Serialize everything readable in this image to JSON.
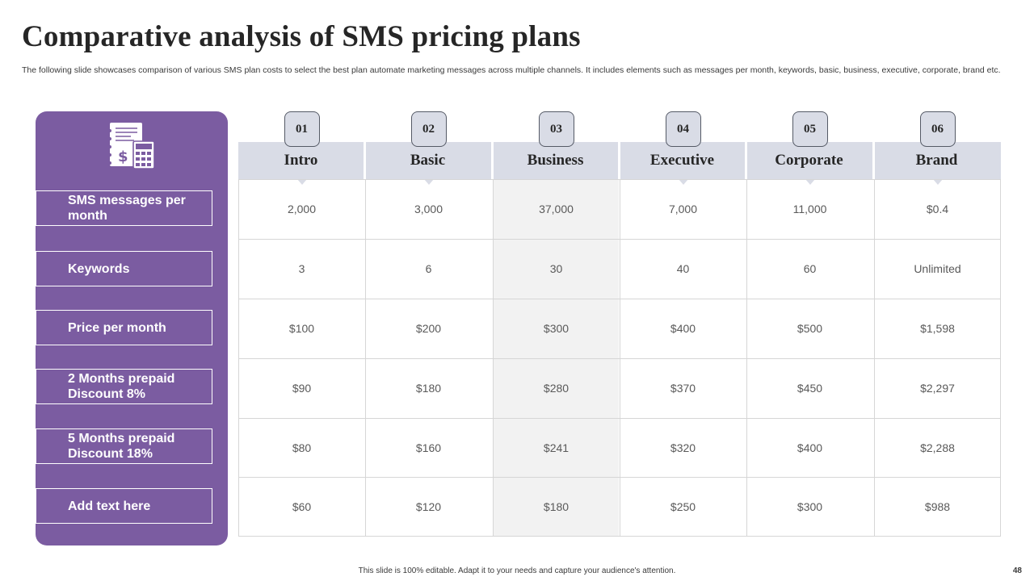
{
  "slide": {
    "title": "Comparative analysis of SMS pricing plans",
    "subtitle": "The following slide showcases comparison of various SMS plan costs to select the best plan automate marketing messages across multiple channels. It includes elements such as messages per month, keywords, basic, business, executive, corporate, brand etc.",
    "footer": "This slide is 100% editable. Adapt it to your needs and capture your audience's attention.",
    "page_number": "48",
    "accent_color": "#7b5ca1",
    "header_color": "#d9dce6",
    "highlighted_column": "Business",
    "icon": "document-calculator-icon"
  },
  "rows": [
    "SMS messages per month",
    "Keywords",
    "Price per month",
    "2 Months prepaid Discount 8%",
    "5 Months prepaid Discount 18%",
    "Add text here"
  ],
  "columns": [
    {
      "number": "01",
      "name": "Intro"
    },
    {
      "number": "02",
      "name": "Basic"
    },
    {
      "number": "03",
      "name": "Business"
    },
    {
      "number": "04",
      "name": "Executive"
    },
    {
      "number": "05",
      "name": "Corporate"
    },
    {
      "number": "06",
      "name": "Brand"
    }
  ],
  "cells": [
    [
      "2,000",
      "3,000",
      "37,000",
      "7,000",
      "11,000",
      "$0.4"
    ],
    [
      "3",
      "6",
      "30",
      "40",
      "60",
      "Unlimited"
    ],
    [
      "$100",
      "$200",
      "$300",
      "$400",
      "$500",
      "$1,598"
    ],
    [
      "$90",
      "$180",
      "$280",
      "$370",
      "$450",
      "$2,297"
    ],
    [
      "$80",
      "$160",
      "$241",
      "$320",
      "$400",
      "$2,288"
    ],
    [
      "$60",
      "$120",
      "$180",
      "$250",
      "$300",
      "$988"
    ]
  ]
}
